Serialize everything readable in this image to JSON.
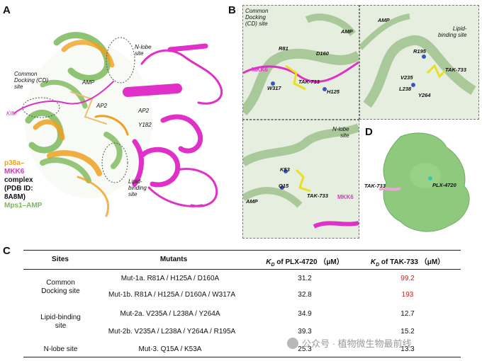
{
  "panel_labels": {
    "a": "A",
    "b": "B",
    "c": "C",
    "d": "D"
  },
  "panel_a": {
    "n_lobe": "N-lobe\nsite",
    "cd_site": "Common\nDocking (CD)\nsite",
    "kim": "KIM",
    "amp": "AMP",
    "ap2_top": "AP2",
    "ap2_right": "AP2",
    "y182": "Y182",
    "lipid": "Lipid-\nbinding\nsite",
    "legend": {
      "p38a": "p38a–",
      "mkk6": "MKK6",
      "complex": "complex\n(PDB ID:\n8A8M)",
      "mps1": "Mps1–AMP"
    }
  },
  "panel_b": {
    "cd": {
      "title": "Common\nDocking\n(CD) site",
      "amp": "AMP",
      "r81": "R81",
      "d160": "D160",
      "mkk6": "MKK6",
      "tak": "TAK-733",
      "w317": "W317",
      "h125": "H125"
    },
    "lipid": {
      "amp": "AMP",
      "title": "Lipid-\nbinding site",
      "r195": "R195",
      "tak": "TAK-733",
      "v235": "V235",
      "l238": "L238",
      "y264": "Y264"
    },
    "nlobe": {
      "title": "N-lobe\nsite",
      "k53": "K53",
      "q15": "Q15",
      "tak": "TAK-733",
      "amp": "AMP",
      "mkk6": "MKK6"
    }
  },
  "panel_d": {
    "tak": "TAK-733",
    "plx": "PLX-4720"
  },
  "table": {
    "headers": {
      "sites": "Sites",
      "mutants": "Mutants",
      "plx": "K",
      "plx_sub": "D",
      "plx_rest": " of PLX-4720 （μM）",
      "tak": "K",
      "tak_sub": "D",
      "tak_rest": " of TAK-733 （μM）"
    },
    "groups": [
      {
        "site": "Common\nDocking site"
      },
      {
        "site": "Lipid-binding\nsite"
      },
      {
        "site": "N-lobe site"
      }
    ],
    "rows": [
      {
        "mutant": "Mut-1a. R81A / H125A / D160A",
        "plx": "31.2",
        "tak": "99.2"
      },
      {
        "mutant": "Mut-1b. R81A / H125A / D160A / W317A",
        "plx": "32.8",
        "tak": "193"
      },
      {
        "mutant": "Mut-2a. V235A / L238A / Y264A",
        "plx": "34.9",
        "tak": "12.7"
      },
      {
        "mutant": "Mut-2b. V235A / L238A / Y264A / R195A",
        "plx": "39.3",
        "tak": "15.2"
      },
      {
        "mutant": "Mut-3. Q15A / K53A",
        "plx": "25.3",
        "tak": "13.3"
      }
    ]
  },
  "watermark": "公众号 · 植物微生物最前线",
  "colors": {
    "p38a": "#f0a020",
    "mkk6": "#e030c8",
    "mps1": "#7ab85a",
    "tak_red": "#e01515",
    "surface": "#8ec97e"
  }
}
